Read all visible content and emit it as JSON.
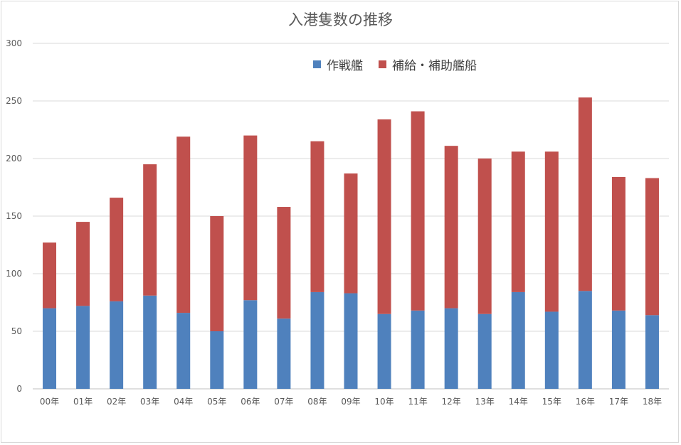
{
  "chart_data": {
    "type": "bar",
    "stacked": true,
    "title": "入港隻数の推移",
    "xlabel": "",
    "ylabel": "",
    "categories": [
      "00年",
      "01年",
      "02年",
      "03年",
      "04年",
      "05年",
      "06年",
      "07年",
      "08年",
      "09年",
      "10年",
      "11年",
      "12年",
      "13年",
      "14年",
      "15年",
      "16年",
      "17年",
      "18年"
    ],
    "series": [
      {
        "name": "作戦艦",
        "color": "#4f81bd",
        "values": [
          70,
          72,
          76,
          81,
          66,
          50,
          77,
          61,
          84,
          83,
          65,
          68,
          70,
          65,
          84,
          67,
          85,
          68,
          64
        ]
      },
      {
        "name": "補給・補助艦船",
        "color": "#c0504d",
        "values": [
          57,
          73,
          90,
          114,
          153,
          100,
          143,
          97,
          131,
          104,
          169,
          173,
          141,
          135,
          122,
          139,
          168,
          116,
          119
        ]
      }
    ],
    "ylim": [
      0,
      300
    ],
    "yticks": [
      0,
      50,
      100,
      150,
      200,
      250,
      300
    ],
    "grid": true,
    "legend_position": "top-right"
  }
}
